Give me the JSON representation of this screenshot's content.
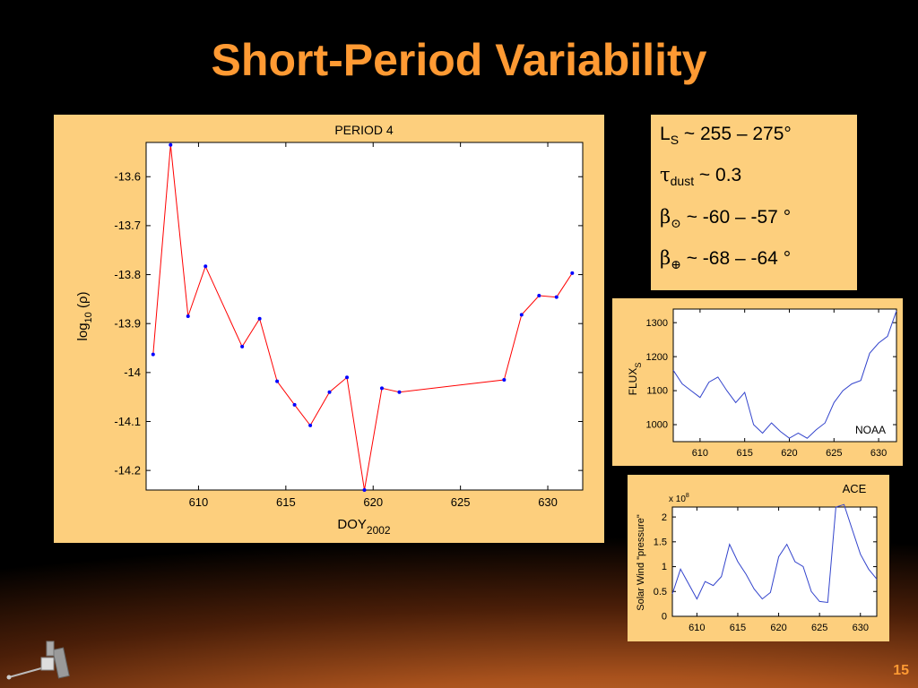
{
  "slide": {
    "title": "Short-Period Variability",
    "page_number": "15"
  },
  "info": {
    "ls": {
      "symbol": "L",
      "sub": "S",
      "text": " ~ 255 – 275°"
    },
    "tau": {
      "symbol": "τ",
      "sub": "dust",
      "text": " ~ 0.3"
    },
    "beta_sun": {
      "symbol": "β",
      "sub": "⊙",
      "text": " ~ -60 – -57 °"
    },
    "beta_earth": {
      "symbol": "β",
      "sub": "⊕",
      "text": " ~ -68 – -64 °"
    }
  },
  "chart_data": [
    {
      "type": "line",
      "title": "PERIOD 4",
      "xlabel": "DOY",
      "xlabel_sub": "2002",
      "ylabel": "log",
      "ylabel_sub": "10",
      "ylabel_suffix": " (ρ)",
      "xlim": [
        607,
        632
      ],
      "ylim": [
        -14.24,
        -13.53
      ],
      "xticks": [
        610,
        615,
        620,
        625,
        630
      ],
      "yticks": [
        -13.6,
        -13.7,
        -13.8,
        -13.9,
        -14,
        -14.1,
        -14.2
      ],
      "yticklabels": [
        "-13.6",
        "-13.7",
        "-13.8",
        "-13.9",
        "-14",
        "-14.1",
        "-14.2"
      ],
      "line_color": "#ff0000",
      "marker_color": "#0000ff",
      "x": [
        607.4,
        608.4,
        609.4,
        610.4,
        612.5,
        613.5,
        614.5,
        615.5,
        616.4,
        617.5,
        618.5,
        619.5,
        620.5,
        621.5,
        627.5,
        628.5,
        629.5,
        630.5,
        631.4
      ],
      "y": [
        -13.963,
        -13.535,
        -13.885,
        -13.783,
        -13.947,
        -13.89,
        -14.018,
        -14.066,
        -14.108,
        -14.04,
        -14.01,
        -14.24,
        -14.032,
        -14.04,
        -14.015,
        -13.882,
        -13.843,
        -13.846,
        -13.797
      ]
    },
    {
      "type": "line",
      "title": "",
      "ylabel": "FLUX",
      "ylabel_sub": "S",
      "annotation": "NOAA",
      "xlim": [
        607,
        632
      ],
      "ylim": [
        950,
        1340
      ],
      "xticks": [
        610,
        615,
        620,
        625,
        630
      ],
      "yticks": [
        1000,
        1100,
        1200,
        1300
      ],
      "line_color": "#3344cc",
      "x": [
        607,
        608,
        609,
        610,
        611,
        612,
        613,
        614,
        615,
        616,
        617,
        618,
        619,
        620,
        621,
        622,
        623,
        624,
        625,
        626,
        627,
        628,
        629,
        630,
        631,
        632
      ],
      "y": [
        1160,
        1120,
        1100,
        1080,
        1125,
        1140,
        1100,
        1065,
        1095,
        1000,
        975,
        1005,
        980,
        960,
        975,
        960,
        985,
        1005,
        1065,
        1100,
        1120,
        1130,
        1210,
        1240,
        1260,
        1335
      ]
    },
    {
      "type": "line",
      "title": "",
      "ylabel": "Solar Wind \"pressure\"",
      "annotation": "ACE",
      "scale_label": "x 10",
      "scale_exp": "8",
      "xlim": [
        607,
        632
      ],
      "ylim": [
        0,
        2.2
      ],
      "xticks": [
        610,
        615,
        620,
        625,
        630
      ],
      "yticks": [
        0,
        0.5,
        1,
        1.5,
        2
      ],
      "yticklabels": [
        "0",
        "0.5",
        "1",
        "1.5",
        "2"
      ],
      "line_color": "#3344cc",
      "x": [
        607,
        608,
        610,
        611,
        612,
        613,
        614,
        615,
        616,
        617,
        618,
        619,
        620,
        621,
        622,
        623,
        624,
        625,
        626,
        627,
        628,
        629,
        630,
        631,
        632
      ],
      "y": [
        0.45,
        0.95,
        0.35,
        0.7,
        0.62,
        0.8,
        1.45,
        1.1,
        0.85,
        0.55,
        0.35,
        0.48,
        1.2,
        1.45,
        1.1,
        1.0,
        0.5,
        0.3,
        0.28,
        2.2,
        2.25,
        1.75,
        1.25,
        0.95,
        0.75
      ]
    }
  ]
}
